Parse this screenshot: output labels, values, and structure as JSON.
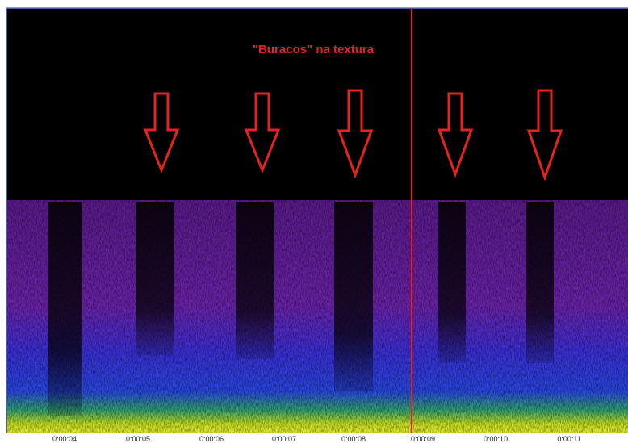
{
  "annotation": "\"Buracos\" na textura",
  "time_axis": {
    "labels": [
      "0:00:04",
      "0:00:05",
      "0:00:06",
      "0:00:07",
      "0:00:08",
      "0:00:09",
      "0:00:10",
      "0:00:11"
    ]
  }
}
